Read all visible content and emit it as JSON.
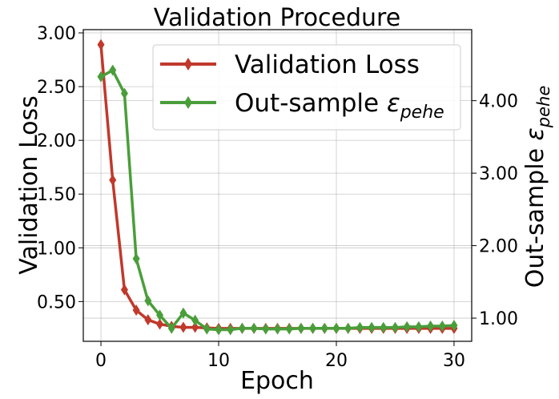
{
  "chart_data": {
    "type": "line",
    "title": "Validation Procedure",
    "xlabel": "Epoch",
    "ylabel_left": "Validation Loss",
    "ylabel_right": {
      "prefix": "Out-sample ",
      "symbol": "ε",
      "subscript": "pehe"
    },
    "xlim": [
      -1.5,
      31.5
    ],
    "ylim_left": [
      0.13,
      3.03
    ],
    "ylim_right": [
      0.68,
      4.98
    ],
    "xticks": [
      0,
      10,
      20,
      30
    ],
    "xtick_labels": [
      "0",
      "10",
      "20",
      "30"
    ],
    "yticks_left": [
      0.5,
      1.0,
      1.5,
      2.0,
      2.5,
      3.0
    ],
    "ytick_labels_left": [
      "0.50",
      "1.00",
      "1.50",
      "2.00",
      "2.50",
      "3.00"
    ],
    "yticks_right": [
      1.0,
      2.0,
      3.0,
      4.0
    ],
    "ytick_labels_right": [
      "1.00",
      "2.00",
      "3.00",
      "4.00"
    ],
    "grid": true,
    "legend_position": "top-right",
    "x": [
      0,
      1,
      2,
      3,
      4,
      5,
      6,
      7,
      8,
      9,
      10,
      11,
      12,
      13,
      14,
      15,
      16,
      17,
      18,
      19,
      20,
      21,
      22,
      23,
      24,
      25,
      26,
      27,
      28,
      29,
      30
    ],
    "series": [
      {
        "name": "Validation Loss",
        "label_text": "Validation Loss",
        "axis": "left",
        "color": "#c0392b",
        "values": [
          2.89,
          1.63,
          0.61,
          0.42,
          0.33,
          0.29,
          0.27,
          0.26,
          0.26,
          0.255,
          0.25,
          0.25,
          0.25,
          0.25,
          0.25,
          0.25,
          0.25,
          0.25,
          0.25,
          0.25,
          0.25,
          0.25,
          0.25,
          0.25,
          0.25,
          0.25,
          0.25,
          0.25,
          0.25,
          0.25,
          0.25
        ]
      },
      {
        "name": "Out-sample ε_pehe",
        "label_prefix": "Out-sample ",
        "label_symbol": "ε",
        "label_subscript": "pehe",
        "axis": "right",
        "color": "#4a9e3a",
        "values": [
          4.33,
          4.42,
          4.1,
          1.82,
          1.24,
          1.04,
          0.86,
          1.07,
          0.97,
          0.85,
          0.84,
          0.84,
          0.86,
          0.86,
          0.85,
          0.85,
          0.85,
          0.86,
          0.86,
          0.86,
          0.86,
          0.86,
          0.87,
          0.87,
          0.87,
          0.87,
          0.88,
          0.88,
          0.89,
          0.89,
          0.9
        ]
      }
    ]
  }
}
